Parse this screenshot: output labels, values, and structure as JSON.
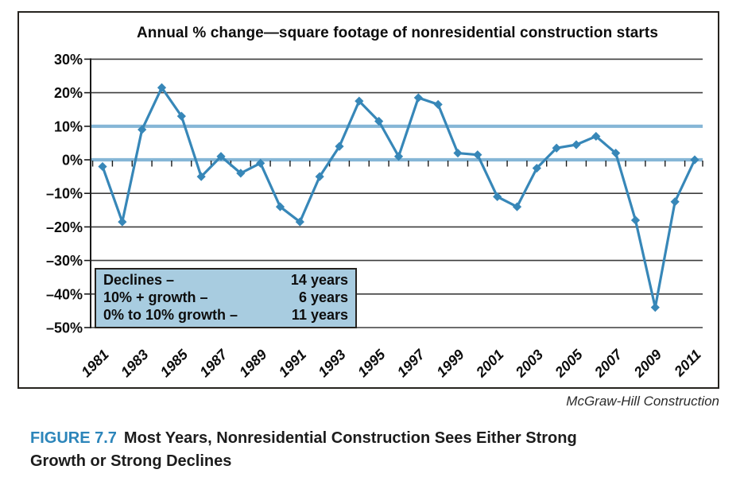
{
  "figure": {
    "source": "McGraw-Hill Construction",
    "caption_label": "FIGURE 7.7",
    "caption_text": "Most Years, Nonresidential Construction Sees Either Strong Growth or Strong Declines"
  },
  "chart_data": {
    "type": "line",
    "title": "Annual % change—square footage of nonresidential construction starts",
    "x": [
      1981,
      1982,
      1983,
      1984,
      1985,
      1986,
      1987,
      1988,
      1989,
      1990,
      1991,
      1992,
      1993,
      1994,
      1995,
      1996,
      1997,
      1998,
      1999,
      2000,
      2001,
      2002,
      2003,
      2004,
      2005,
      2006,
      2007,
      2008,
      2009,
      2010,
      2011
    ],
    "values": [
      -2,
      -18.5,
      9,
      21.5,
      13,
      -5,
      1,
      -4,
      -1,
      -14,
      -18.5,
      -5,
      4,
      17.5,
      11.5,
      1,
      18.5,
      16.5,
      2,
      1.5,
      -11,
      -14,
      -2.5,
      3.5,
      4.5,
      7,
      2,
      -18,
      -44,
      -12.5,
      0
    ],
    "unit": "percent",
    "xlabel": "",
    "ylabel": "",
    "ylim": [
      -50,
      30
    ],
    "y_tick_values": [
      30,
      20,
      10,
      0,
      -10,
      -20,
      -30,
      -40,
      -50
    ],
    "y_tick_labels": [
      "30%",
      "20%",
      "10%",
      "0%",
      "–10%",
      "–20%",
      "–30%",
      "–40%",
      "–50%"
    ],
    "x_tick_labels": [
      "1981",
      "1983",
      "1985",
      "1987",
      "1989",
      "1991",
      "1993",
      "1995",
      "1997",
      "1999",
      "2001",
      "2003",
      "2005",
      "2007",
      "2009",
      "2011"
    ],
    "highlight_line_values": [
      10,
      0
    ],
    "grid": true,
    "marker": "diamond",
    "legend_position": "bottom-left",
    "legend_rows": [
      {
        "label": "Declines –",
        "value": "14 years"
      },
      {
        "label": "10% + growth –",
        "value": "6 years"
      },
      {
        "label": "0% to 10% growth –",
        "value": "11 years"
      }
    ]
  },
  "colors": {
    "line": "#3787B8",
    "highlight_line": "#85B6D6",
    "grid": "#3d3d3d",
    "axis": "#1a1a1a",
    "legend_fill": "#A8CCE0",
    "figure_label_blue": "#2C85BA"
  }
}
